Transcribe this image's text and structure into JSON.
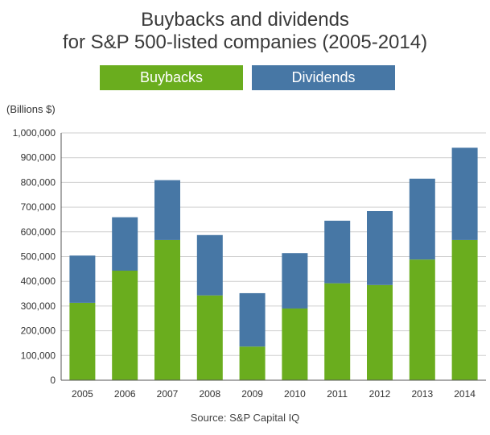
{
  "chart_data": {
    "type": "bar",
    "stacked": true,
    "title": "Buybacks and dividends",
    "subtitle": "for S&P 500-listed companies (2005-2014)",
    "unit_label": "(Billions $)",
    "source": "Source: S&P Capital IQ",
    "categories": [
      "2005",
      "2006",
      "2007",
      "2008",
      "2009",
      "2010",
      "2011",
      "2012",
      "2013",
      "2014"
    ],
    "series": [
      {
        "name": "Buybacks",
        "color": "#6aad1e",
        "values": [
          313000,
          443000,
          567000,
          343000,
          136000,
          290000,
          392000,
          385000,
          488000,
          567000
        ]
      },
      {
        "name": "Dividends",
        "color": "#4777a5",
        "values": [
          191000,
          216000,
          242000,
          244000,
          216000,
          224000,
          253000,
          299000,
          327000,
          373000
        ]
      }
    ],
    "ylim": [
      0,
      1000000
    ],
    "yticks": [
      0,
      100000,
      200000,
      300000,
      400000,
      500000,
      600000,
      700000,
      800000,
      900000,
      1000000
    ],
    "ytick_labels": [
      "0",
      "100,000",
      "200,000",
      "300,000",
      "400,000",
      "500,000",
      "600,000",
      "700,000",
      "800,000",
      "900,000",
      "1,000,000"
    ],
    "grid": true,
    "legend_position": "top"
  }
}
